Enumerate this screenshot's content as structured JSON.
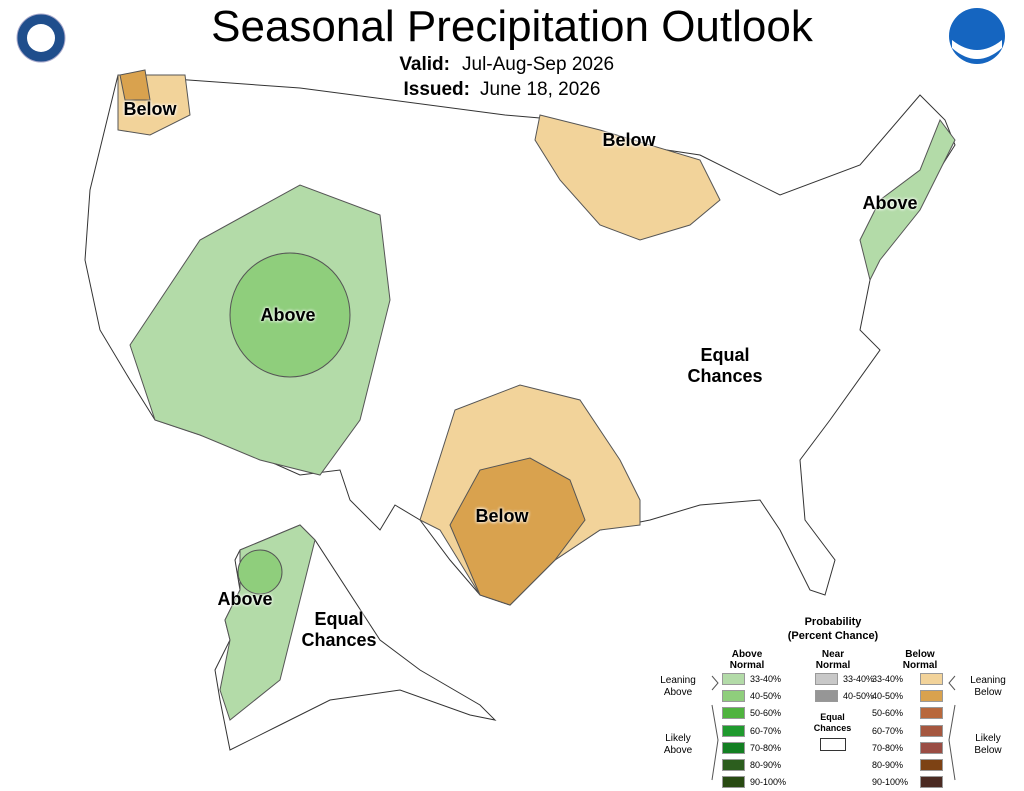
{
  "header": {
    "title": "Seasonal Precipitation Outlook",
    "valid_label": "Valid:",
    "valid": "Jul-Aug-Sep 2026",
    "issued_label": "Issued:",
    "issued": "June 18, 2026"
  },
  "map_labels": [
    "Below",
    "Below",
    "Above",
    "Above",
    "Equal Chances",
    "Below",
    "Above",
    "Equal Chances"
  ],
  "legend": {
    "title": "Probability",
    "subtitle": "(Percent Chance)",
    "above": {
      "header": "Above Normal",
      "items": [
        {
          "label": "33-40%",
          "color": "#b3dba8"
        },
        {
          "label": "40-50%",
          "color": "#8fce7c"
        },
        {
          "label": "50-60%",
          "color": "#4fb33e"
        },
        {
          "label": "60-70%",
          "color": "#1f9a2e"
        },
        {
          "label": "70-80%",
          "color": "#137f22"
        },
        {
          "label": "80-90%",
          "color": "#2c5e1e"
        },
        {
          "label": "90-100%",
          "color": "#284a12"
        }
      ]
    },
    "near": {
      "header": "Near Normal",
      "items": [
        {
          "label": "33-40%",
          "color": "#c8c8c8"
        },
        {
          "label": "40-50%",
          "color": "#969696"
        }
      ]
    },
    "below": {
      "header": "Below Normal",
      "items": [
        {
          "label": "33-40%",
          "color": "#f2d39a"
        },
        {
          "label": "40-50%",
          "color": "#d9a24e"
        },
        {
          "label": "50-60%",
          "color": "#b8683c"
        },
        {
          "label": "60-70%",
          "color": "#a5573f"
        },
        {
          "label": "70-80%",
          "color": "#9a4d44"
        },
        {
          "label": "80-90%",
          "color": "#7d4214"
        },
        {
          "label": "90-100%",
          "color": "#4a2a22"
        }
      ]
    },
    "equal": {
      "label": "Equal Chances"
    },
    "groups": {
      "leaning_above": "Leaning Above",
      "likely_above": "Likely Above",
      "leaning_below": "Leaning Below",
      "likely_below": "Likely Below"
    }
  }
}
